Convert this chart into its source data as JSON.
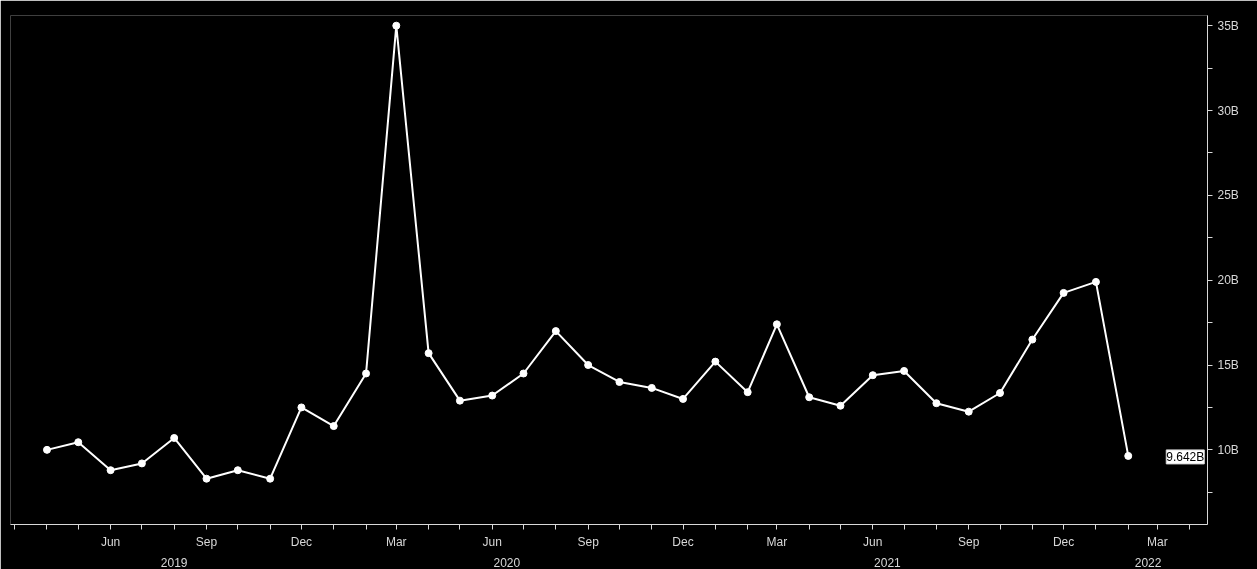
{
  "chart_data": {
    "type": "line",
    "x": [
      "2019-04",
      "2019-05",
      "2019-06",
      "2019-07",
      "2019-08",
      "2019-09",
      "2019-10",
      "2019-11",
      "2019-12",
      "2020-01",
      "2020-02",
      "2020-03",
      "2020-04",
      "2020-05",
      "2020-06",
      "2020-07",
      "2020-08",
      "2020-09",
      "2020-10",
      "2020-11",
      "2020-12",
      "2021-01",
      "2021-02",
      "2021-03",
      "2021-04",
      "2021-05",
      "2021-06",
      "2021-07",
      "2021-08",
      "2021-09",
      "2021-10",
      "2021-11",
      "2021-12",
      "2022-01",
      "2022-02"
    ],
    "series": [
      {
        "color": "#ffffff",
        "values": [
          10.0,
          10.45,
          8.8,
          9.2,
          10.7,
          8.3,
          8.8,
          8.3,
          12.5,
          11.4,
          14.5,
          35.0,
          15.7,
          12.9,
          13.2,
          14.5,
          17.0,
          15.0,
          14.0,
          13.65,
          13.0,
          15.2,
          13.4,
          17.4,
          13.1,
          12.6,
          14.4,
          14.65,
          12.75,
          12.25,
          13.35,
          16.5,
          19.25,
          19.9,
          9.642
        ]
      }
    ],
    "marker": "circle",
    "line_style": "solid",
    "grid": false,
    "ylim": [
      5.6,
      35.6
    ],
    "yticks": [
      {
        "value": 7.5,
        "label": null
      },
      {
        "value": 10,
        "label": "10B"
      },
      {
        "value": 12.5,
        "label": null
      },
      {
        "value": 15,
        "label": "15B"
      },
      {
        "value": 17.5,
        "label": null
      },
      {
        "value": 20,
        "label": "20B"
      },
      {
        "value": 22.5,
        "label": null
      },
      {
        "value": 25,
        "label": "25B"
      },
      {
        "value": 27.5,
        "label": null
      },
      {
        "value": 30,
        "label": "30B"
      },
      {
        "value": 32.5,
        "label": null
      },
      {
        "value": 35,
        "label": "35B"
      }
    ],
    "xlim": [
      "2019-02-25",
      "2022-04-18"
    ],
    "xticks": [
      {
        "value": "2019-03",
        "label": null
      },
      {
        "value": "2019-04",
        "label": null
      },
      {
        "value": "2019-05",
        "label": null
      },
      {
        "value": "2019-06",
        "label": "Jun"
      },
      {
        "value": "2019-07",
        "label": null
      },
      {
        "value": "2019-08",
        "label": null
      },
      {
        "value": "2019-09",
        "label": "Sep"
      },
      {
        "value": "2019-10",
        "label": null
      },
      {
        "value": "2019-11",
        "label": null
      },
      {
        "value": "2019-12",
        "label": "Dec"
      },
      {
        "value": "2020-01",
        "label": null
      },
      {
        "value": "2020-02",
        "label": null
      },
      {
        "value": "2020-03",
        "label": "Mar"
      },
      {
        "value": "2020-04",
        "label": null
      },
      {
        "value": "2020-05",
        "label": null
      },
      {
        "value": "2020-06",
        "label": "Jun"
      },
      {
        "value": "2020-07",
        "label": null
      },
      {
        "value": "2020-08",
        "label": null
      },
      {
        "value": "2020-09",
        "label": "Sep"
      },
      {
        "value": "2020-10",
        "label": null
      },
      {
        "value": "2020-11",
        "label": null
      },
      {
        "value": "2020-12",
        "label": "Dec"
      },
      {
        "value": "2021-01",
        "label": null
      },
      {
        "value": "2021-02",
        "label": null
      },
      {
        "value": "2021-03",
        "label": "Mar"
      },
      {
        "value": "2021-04",
        "label": null
      },
      {
        "value": "2021-05",
        "label": null
      },
      {
        "value": "2021-06",
        "label": "Jun"
      },
      {
        "value": "2021-07",
        "label": null
      },
      {
        "value": "2021-08",
        "label": null
      },
      {
        "value": "2021-09",
        "label": "Sep"
      },
      {
        "value": "2021-10",
        "label": null
      },
      {
        "value": "2021-11",
        "label": null
      },
      {
        "value": "2021-12",
        "label": "Dec"
      },
      {
        "value": "2022-01",
        "label": null
      },
      {
        "value": "2022-02",
        "label": null
      },
      {
        "value": "2022-03",
        "label": "Mar"
      },
      {
        "value": "2022-04",
        "label": null
      }
    ],
    "x2lim": [
      "2019-02-25",
      "2022-04-18"
    ],
    "x2ticks": [
      {
        "value": "2019-08-01",
        "label": "2019"
      },
      {
        "value": "2020-06-15",
        "label": "2020"
      },
      {
        "value": "2021-06-15",
        "label": "2021"
      },
      {
        "value": "2022-02-20",
        "label": "2022"
      }
    ],
    "annotations": [
      "9.642B"
    ]
  }
}
